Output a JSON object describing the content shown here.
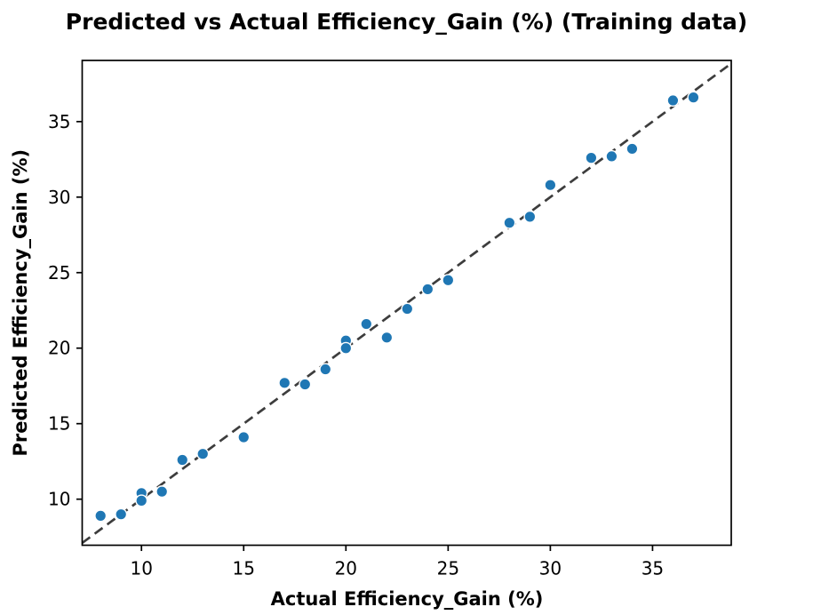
{
  "chart_data": {
    "type": "scatter",
    "title": "Predicted vs Actual Efficiency_Gain (%) (Training data)",
    "xlabel": "Actual Efficiency_Gain (%)",
    "ylabel": "Predicted Efficiency_Gain (%)",
    "xlim": [
      7.1,
      38.85
    ],
    "ylim": [
      6.95,
      39.05
    ],
    "xticks": [
      10,
      15,
      20,
      25,
      30,
      35
    ],
    "yticks": [
      10,
      15,
      20,
      25,
      30,
      35
    ],
    "grid": false,
    "legend": "none",
    "marker_color": "#1f77b4",
    "marker_edge_color": "#ffffff",
    "identity_line": {
      "style": "dashed",
      "color": "#3d3d3d",
      "from": 7.1,
      "to": 38.85
    },
    "points": [
      [
        8,
        8.9
      ],
      [
        9,
        9.0
      ],
      [
        10,
        10.4
      ],
      [
        10,
        9.9
      ],
      [
        11,
        10.5
      ],
      [
        12,
        12.6
      ],
      [
        13,
        13.0
      ],
      [
        15,
        14.1
      ],
      [
        17,
        17.7
      ],
      [
        18,
        17.6
      ],
      [
        19,
        18.6
      ],
      [
        20,
        20.5
      ],
      [
        20,
        20.0
      ],
      [
        21,
        21.6
      ],
      [
        22,
        20.7
      ],
      [
        23,
        22.6
      ],
      [
        24,
        23.9
      ],
      [
        25,
        24.5
      ],
      [
        28,
        28.3
      ],
      [
        29,
        28.7
      ],
      [
        30,
        30.8
      ],
      [
        32,
        32.6
      ],
      [
        33,
        32.7
      ],
      [
        34,
        33.2
      ],
      [
        36,
        36.4
      ],
      [
        37,
        36.6
      ]
    ]
  }
}
